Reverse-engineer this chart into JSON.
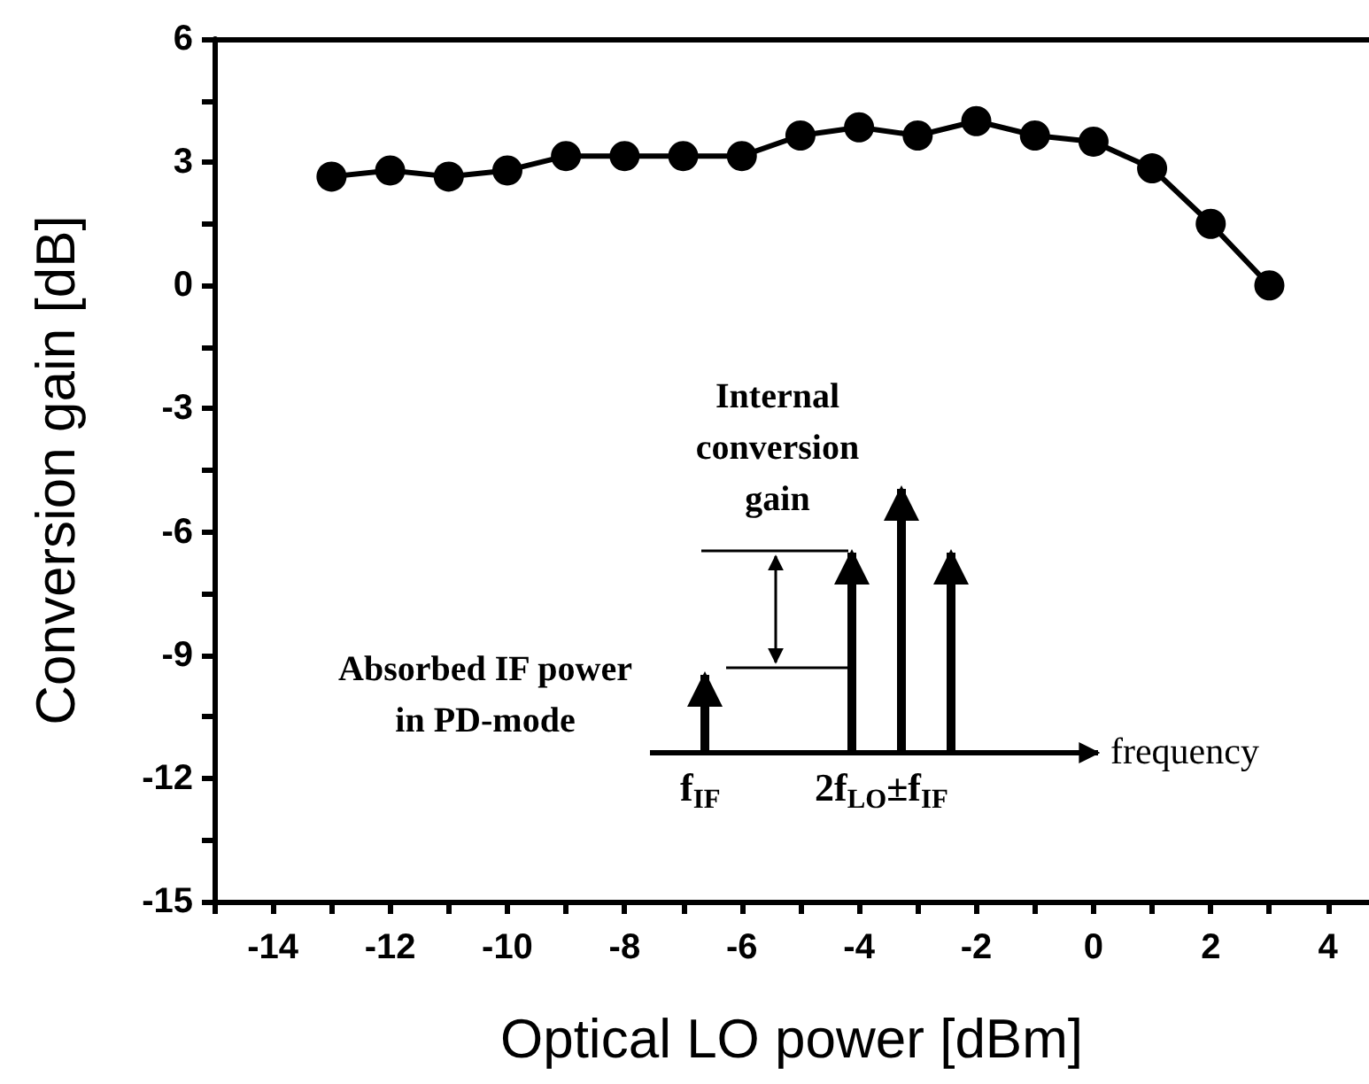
{
  "chart_data": {
    "type": "line",
    "xlabel": "Optical LO power [dBm]",
    "ylabel": "Conversion gain [dB]",
    "x": [
      -13,
      -12,
      -11,
      -10,
      -9,
      -8,
      -7,
      -6,
      -5,
      -4,
      -3,
      -2,
      -1,
      0,
      1,
      2,
      3
    ],
    "series": [
      {
        "color": "#000000",
        "values": [
          2.65,
          2.8,
          2.65,
          2.8,
          3.15,
          3.15,
          3.15,
          3.15,
          3.65,
          3.85,
          3.65,
          4.0,
          3.65,
          3.5,
          2.85,
          1.5,
          0
        ]
      }
    ],
    "xlim": [
      -15,
      4.7
    ],
    "xticks": [
      {
        "value": -15,
        "label": null
      },
      -14,
      {
        "value": -13,
        "label": null
      },
      -12,
      {
        "value": -11,
        "label": null
      },
      -10,
      {
        "value": -9,
        "label": null
      },
      -8,
      {
        "value": -7,
        "label": null
      },
      -6,
      {
        "value": -5,
        "label": null
      },
      -4,
      {
        "value": -3,
        "label": null
      },
      -2,
      {
        "value": -1,
        "label": null
      },
      0,
      {
        "value": 1,
        "label": null
      },
      2,
      {
        "value": 3,
        "label": null
      },
      4
    ],
    "ylim": [
      -15,
      6
    ],
    "yticks": [
      -15,
      {
        "value": -13.5,
        "label": null
      },
      -12,
      {
        "value": -10.5,
        "label": null
      },
      -9,
      {
        "value": -7.5,
        "label": null
      },
      -6,
      {
        "value": -4.5,
        "label": null
      },
      -3,
      {
        "value": -1.5,
        "label": null
      },
      0,
      {
        "value": 1.5,
        "label": null
      },
      3,
      {
        "value": 4.5,
        "label": null
      },
      6
    ],
    "annotations": [
      "Internal\nconversion\ngain",
      "Absorbed IF power\nin PD-mode",
      "frequency",
      "f$_{IF}$",
      "2f$_{LO}$±f$_{IF}$"
    ],
    "marker": "circle",
    "line_style": "solid"
  }
}
